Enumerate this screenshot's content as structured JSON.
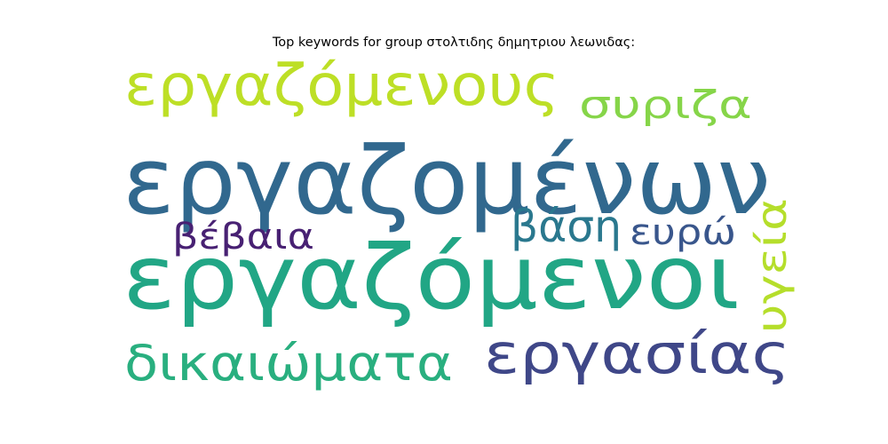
{
  "chart_data": {
    "type": "wordcloud",
    "title": "Top keywords for group στολτιδης δημητριου λεωνιδας:",
    "words": [
      {
        "text": "εργαζομένων",
        "weight": 100,
        "color": "#31688e",
        "orientation": "horizontal"
      },
      {
        "text": "εργαζόμενοι",
        "weight": 96,
        "color": "#21a685",
        "orientation": "horizontal"
      },
      {
        "text": "εργαζόμενους",
        "weight": 62,
        "color": "#bddf26",
        "orientation": "horizontal"
      },
      {
        "text": "εργασίας",
        "weight": 60,
        "color": "#3f4788",
        "orientation": "horizontal"
      },
      {
        "text": "δικαιώματα",
        "weight": 52,
        "color": "#29af7f",
        "orientation": "horizontal"
      },
      {
        "text": "βάση",
        "weight": 46,
        "color": "#2a788e",
        "orientation": "horizontal"
      },
      {
        "text": "υγεία",
        "weight": 44,
        "color": "#b5de2b",
        "orientation": "vertical"
      },
      {
        "text": "συριζα",
        "weight": 42,
        "color": "#86d549",
        "orientation": "horizontal"
      },
      {
        "text": "βέβαια",
        "weight": 38,
        "color": "#482173",
        "orientation": "horizontal"
      },
      {
        "text": "ευρώ",
        "weight": 37,
        "color": "#39568c",
        "orientation": "horizontal"
      }
    ]
  }
}
